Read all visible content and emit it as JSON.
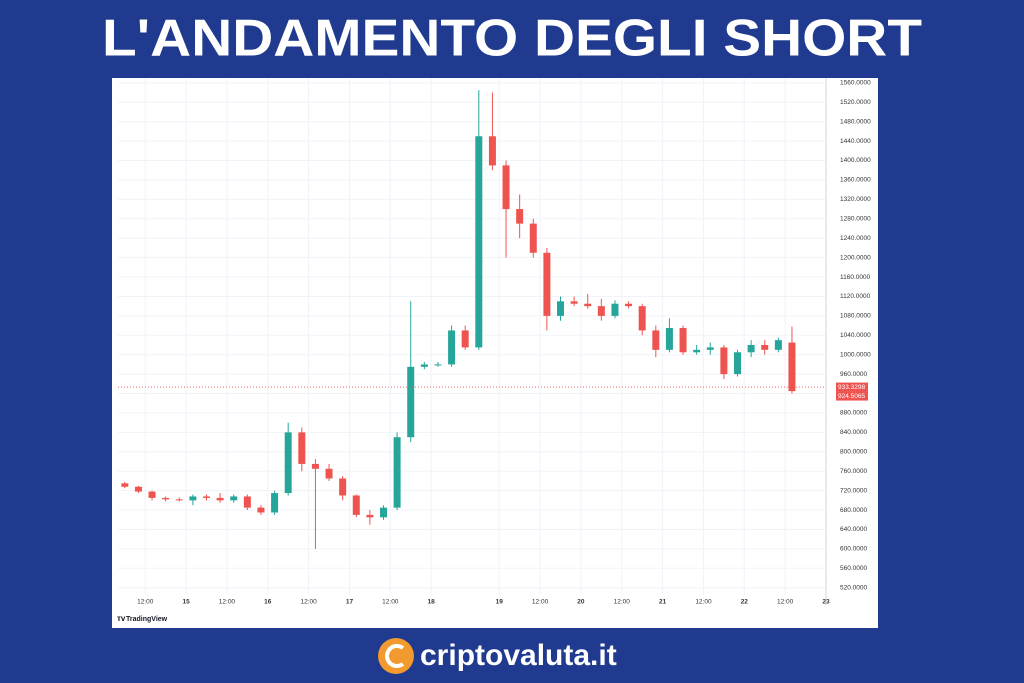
{
  "title": "L'ANDAMENTO DEGLI SHORT",
  "watermark": "TradingView",
  "footer": "criptovaluta.it",
  "chart_data": {
    "type": "candlestick",
    "up_color": "#26a69a",
    "down_color": "#ef5350",
    "grid": true,
    "open": [
      735,
      728,
      718,
      705,
      702,
      700,
      708,
      705,
      700,
      708,
      685,
      675,
      715,
      840,
      775,
      765,
      745,
      710,
      670,
      665,
      685,
      830,
      975,
      980,
      980,
      1050,
      1015,
      1450,
      1390,
      1300,
      1270,
      1210,
      1080,
      1110,
      1105,
      1100,
      1080,
      1105,
      1100,
      1050,
      1010,
      1055,
      1005,
      1010,
      1015,
      960,
      1005,
      1020,
      1010,
      1025
    ],
    "high": [
      738,
      730,
      720,
      708,
      706,
      712,
      712,
      715,
      712,
      712,
      690,
      720,
      860,
      850,
      785,
      775,
      750,
      712,
      680,
      690,
      840,
      1110,
      985,
      985,
      1060,
      1060,
      1545,
      1540,
      1400,
      1330,
      1280,
      1220,
      1120,
      1120,
      1125,
      1115,
      1112,
      1110,
      1105,
      1060,
      1075,
      1060,
      1020,
      1025,
      1020,
      1010,
      1030,
      1030,
      1035,
      1058
    ],
    "low": [
      725,
      715,
      700,
      698,
      698,
      690,
      700,
      695,
      695,
      680,
      670,
      670,
      710,
      760,
      600,
      740,
      700,
      665,
      650,
      660,
      680,
      820,
      970,
      975,
      975,
      1010,
      1010,
      1380,
      1200,
      1240,
      1200,
      1050,
      1070,
      1100,
      1095,
      1070,
      1075,
      1095,
      1040,
      995,
      1005,
      1000,
      1000,
      1000,
      950,
      955,
      995,
      1000,
      1005,
      920
    ],
    "close": [
      728,
      718,
      705,
      702,
      700,
      708,
      705,
      700,
      708,
      685,
      675,
      715,
      840,
      775,
      765,
      745,
      710,
      670,
      665,
      685,
      830,
      975,
      980,
      980,
      1050,
      1015,
      1450,
      1390,
      1300,
      1270,
      1210,
      1080,
      1110,
      1105,
      1100,
      1080,
      1105,
      1100,
      1050,
      1010,
      1055,
      1005,
      1010,
      1015,
      960,
      1005,
      1020,
      1010,
      1030,
      925
    ],
    "xlim": [
      0,
      52
    ],
    "xticks": [
      {
        "value": 2,
        "label": "12:00"
      },
      {
        "value": 5,
        "label": "15"
      },
      {
        "value": 8,
        "label": "12:00"
      },
      {
        "value": 11,
        "label": "16"
      },
      {
        "value": 14,
        "label": "12:00"
      },
      {
        "value": 17,
        "label": "17"
      },
      {
        "value": 20,
        "label": "12:00"
      },
      {
        "value": 23,
        "label": "18"
      },
      {
        "value": 28,
        "label": "19"
      },
      {
        "value": 31,
        "label": "12:00"
      },
      {
        "value": 34,
        "label": "20"
      },
      {
        "value": 37,
        "label": "12:00"
      },
      {
        "value": 40,
        "label": "21"
      },
      {
        "value": 43,
        "label": "12:00"
      },
      {
        "value": 46,
        "label": "22"
      },
      {
        "value": 49,
        "label": "12:00"
      },
      {
        "value": 52,
        "label": "23"
      }
    ],
    "ylim": [
      505,
      1570
    ],
    "yticks": [
      {
        "value": 520,
        "label": "520.0000"
      },
      {
        "value": 560,
        "label": "560.0000"
      },
      {
        "value": 600,
        "label": "600.0000"
      },
      {
        "value": 640,
        "label": "640.0000"
      },
      {
        "value": 680,
        "label": "680.0000"
      },
      {
        "value": 720,
        "label": "720.0000"
      },
      {
        "value": 760,
        "label": "760.0000"
      },
      {
        "value": 800,
        "label": "800.0000"
      },
      {
        "value": 840,
        "label": "840.0000"
      },
      {
        "value": 880,
        "label": "880.0000"
      },
      {
        "value": 920,
        "label": "920.0000"
      },
      {
        "value": 960,
        "label": "960.0000"
      },
      {
        "value": 1000,
        "label": "1000.0000"
      },
      {
        "value": 1040,
        "label": "1040.0000"
      },
      {
        "value": 1080,
        "label": "1080.0000"
      },
      {
        "value": 1120,
        "label": "1120.0000"
      },
      {
        "value": 1160,
        "label": "1160.0000"
      },
      {
        "value": 1200,
        "label": "1200.0000"
      },
      {
        "value": 1240,
        "label": "1240.0000"
      },
      {
        "value": 1280,
        "label": "1280.0000"
      },
      {
        "value": 1320,
        "label": "1320.0000"
      },
      {
        "value": 1360,
        "label": "1360.0000"
      },
      {
        "value": 1400,
        "label": "1400.0000"
      },
      {
        "value": 1440,
        "label": "1440.0000"
      },
      {
        "value": 1480,
        "label": "1480.0000"
      },
      {
        "value": 1520,
        "label": "1520.0000"
      },
      {
        "value": 1560,
        "label": "1560.0000"
      }
    ],
    "price_lines": [
      933.3298,
      924.5065
    ]
  }
}
